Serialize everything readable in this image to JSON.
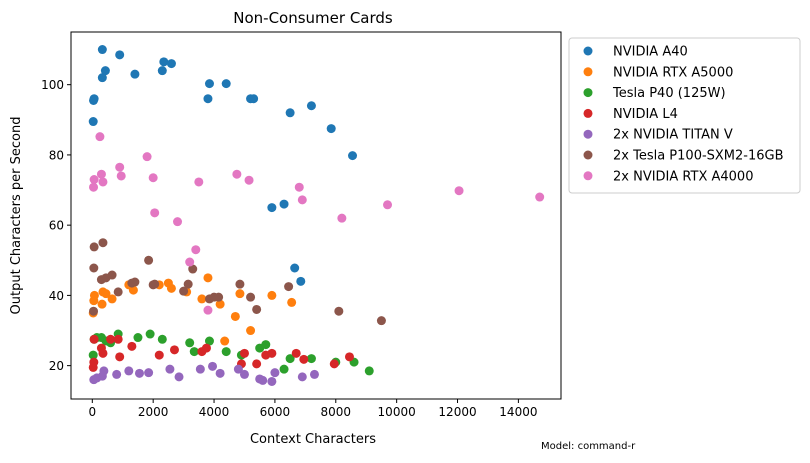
{
  "chart_data": {
    "type": "scatter",
    "title": "Non-Consumer Cards",
    "xlabel": "Context Characters",
    "ylabel": "Output Characters per Second",
    "xlim": [
      -700,
      15400
    ],
    "ylim": [
      10.5,
      115
    ],
    "x_ticks": [
      0,
      2000,
      4000,
      6000,
      8000,
      10000,
      12000,
      14000
    ],
    "y_ticks": [
      20,
      40,
      60,
      80,
      100
    ],
    "grid": false,
    "legend_position": "outside-right",
    "footnote": "Model: command-r",
    "series": [
      {
        "name": "NVIDIA A40",
        "color": "#1f77b4",
        "points": [
          [
            30,
            89.5
          ],
          [
            40,
            95.5
          ],
          [
            60,
            96
          ],
          [
            330,
            110
          ],
          [
            330,
            102
          ],
          [
            430,
            104
          ],
          [
            900,
            108.5
          ],
          [
            1400,
            103
          ],
          [
            2300,
            104
          ],
          [
            2350,
            106.5
          ],
          [
            2600,
            106
          ],
          [
            3800,
            96
          ],
          [
            3850,
            100.3
          ],
          [
            4400,
            100.3
          ],
          [
            5200,
            96
          ],
          [
            5300,
            96
          ],
          [
            6500,
            92
          ],
          [
            7200,
            94
          ],
          [
            7850,
            87.5
          ],
          [
            8550,
            79.8
          ],
          [
            5900,
            65
          ],
          [
            6300,
            66
          ],
          [
            6650,
            47.8
          ],
          [
            6850,
            44
          ]
        ]
      },
      {
        "name": "NVIDIA RTX A5000",
        "color": "#ff7f0e",
        "points": [
          [
            30,
            35
          ],
          [
            50,
            38.5
          ],
          [
            70,
            40
          ],
          [
            320,
            37.5
          ],
          [
            350,
            41
          ],
          [
            450,
            40.5
          ],
          [
            650,
            39
          ],
          [
            1200,
            43
          ],
          [
            1350,
            41.5
          ],
          [
            2200,
            43
          ],
          [
            2500,
            43.5
          ],
          [
            2600,
            42
          ],
          [
            3100,
            41
          ],
          [
            3600,
            39
          ],
          [
            3800,
            45
          ],
          [
            4200,
            37.5
          ],
          [
            4350,
            27
          ],
          [
            4700,
            34
          ],
          [
            4850,
            40.5
          ],
          [
            5200,
            30
          ],
          [
            5900,
            40
          ],
          [
            6550,
            38
          ]
        ]
      },
      {
        "name": "Tesla P40 (125W)",
        "color": "#2ca02c",
        "points": [
          [
            30,
            23
          ],
          [
            60,
            27.5
          ],
          [
            150,
            28
          ],
          [
            300,
            28
          ],
          [
            450,
            27
          ],
          [
            600,
            26.5
          ],
          [
            850,
            29
          ],
          [
            1500,
            28
          ],
          [
            1900,
            29
          ],
          [
            2300,
            27.5
          ],
          [
            3200,
            26.5
          ],
          [
            3350,
            24
          ],
          [
            3850,
            27
          ],
          [
            4400,
            24
          ],
          [
            4900,
            23
          ],
          [
            5500,
            25
          ],
          [
            5700,
            26
          ],
          [
            6300,
            19
          ],
          [
            6500,
            22
          ],
          [
            7200,
            22
          ],
          [
            8000,
            21
          ],
          [
            8600,
            21
          ],
          [
            9100,
            18.5
          ]
        ]
      },
      {
        "name": "NVIDIA L4",
        "color": "#d62728",
        "points": [
          [
            30,
            19.5
          ],
          [
            50,
            21
          ],
          [
            60,
            27.5
          ],
          [
            300,
            25
          ],
          [
            350,
            23.5
          ],
          [
            600,
            27.5
          ],
          [
            850,
            27.5
          ],
          [
            900,
            22.5
          ],
          [
            1300,
            25.5
          ],
          [
            2200,
            23
          ],
          [
            2700,
            24.5
          ],
          [
            3600,
            24
          ],
          [
            3750,
            25
          ],
          [
            4900,
            20.5
          ],
          [
            5000,
            23.5
          ],
          [
            5400,
            20.5
          ],
          [
            5700,
            23
          ],
          [
            5900,
            23.5
          ],
          [
            6700,
            23.5
          ],
          [
            6950,
            21.8
          ],
          [
            7950,
            20.5
          ],
          [
            8450,
            22.5
          ]
        ]
      },
      {
        "name": "2x NVIDIA TITAN V",
        "color": "#9467bd",
        "points": [
          [
            50,
            16
          ],
          [
            150,
            16.5
          ],
          [
            330,
            17
          ],
          [
            380,
            18.5
          ],
          [
            800,
            17.5
          ],
          [
            1200,
            18.5
          ],
          [
            1550,
            17.8
          ],
          [
            1850,
            18
          ],
          [
            2550,
            19
          ],
          [
            2850,
            16.8
          ],
          [
            3550,
            19
          ],
          [
            3950,
            19.8
          ],
          [
            4200,
            17.8
          ],
          [
            4800,
            19
          ],
          [
            5000,
            17.5
          ],
          [
            5500,
            16.2
          ],
          [
            5600,
            15.8
          ],
          [
            5900,
            15.5
          ],
          [
            6000,
            18
          ],
          [
            6900,
            16.8
          ],
          [
            7300,
            17.5
          ]
        ]
      },
      {
        "name": "2x Tesla P100-SXM2-16GB",
        "color": "#8c564b",
        "points": [
          [
            40,
            35.5
          ],
          [
            50,
            47.8
          ],
          [
            60,
            53.8
          ],
          [
            300,
            44.5
          ],
          [
            350,
            55
          ],
          [
            450,
            45
          ],
          [
            650,
            45.8
          ],
          [
            850,
            41
          ],
          [
            1300,
            43.5
          ],
          [
            1400,
            43.8
          ],
          [
            1850,
            50
          ],
          [
            2000,
            43
          ],
          [
            2050,
            43.2
          ],
          [
            3000,
            41.2
          ],
          [
            3150,
            43.2
          ],
          [
            3300,
            47.5
          ],
          [
            3850,
            39
          ],
          [
            4000,
            39.5
          ],
          [
            4150,
            39.5
          ],
          [
            4850,
            43.2
          ],
          [
            5200,
            39.5
          ],
          [
            5400,
            36
          ],
          [
            6450,
            42.5
          ],
          [
            8100,
            35.5
          ],
          [
            9500,
            32.8
          ]
        ]
      },
      {
        "name": "2x NVIDIA RTX A4000",
        "color": "#e377c2",
        "points": [
          [
            40,
            70.8
          ],
          [
            60,
            73
          ],
          [
            250,
            85.2
          ],
          [
            300,
            74.5
          ],
          [
            350,
            72.3
          ],
          [
            900,
            76.5
          ],
          [
            950,
            74
          ],
          [
            1800,
            79.5
          ],
          [
            2000,
            73.5
          ],
          [
            2050,
            63.5
          ],
          [
            2800,
            61
          ],
          [
            3200,
            49.5
          ],
          [
            3400,
            53
          ],
          [
            3500,
            72.3
          ],
          [
            3800,
            35.8
          ],
          [
            4750,
            74.5
          ],
          [
            5150,
            72.8
          ],
          [
            6800,
            70.8
          ],
          [
            6900,
            67.2
          ],
          [
            8200,
            62
          ],
          [
            9700,
            65.8
          ],
          [
            12050,
            69.8
          ],
          [
            14700,
            68
          ]
        ]
      }
    ]
  }
}
